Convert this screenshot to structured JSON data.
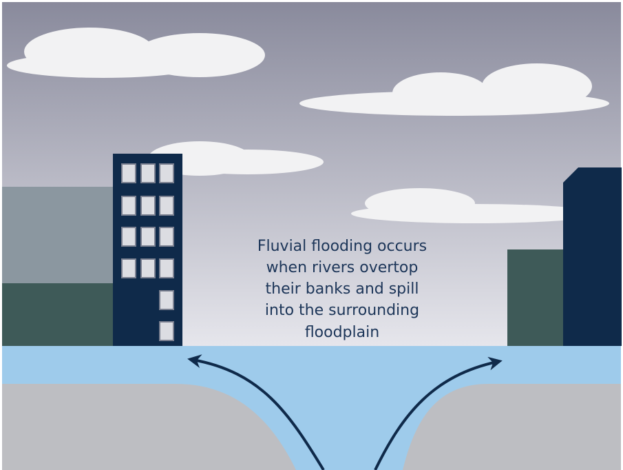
{
  "caption": {
    "lines": [
      "Fluvial flooding occurs",
      "when rivers overtop",
      "their banks and spill",
      "into the surrounding",
      "floodplain"
    ]
  }
}
